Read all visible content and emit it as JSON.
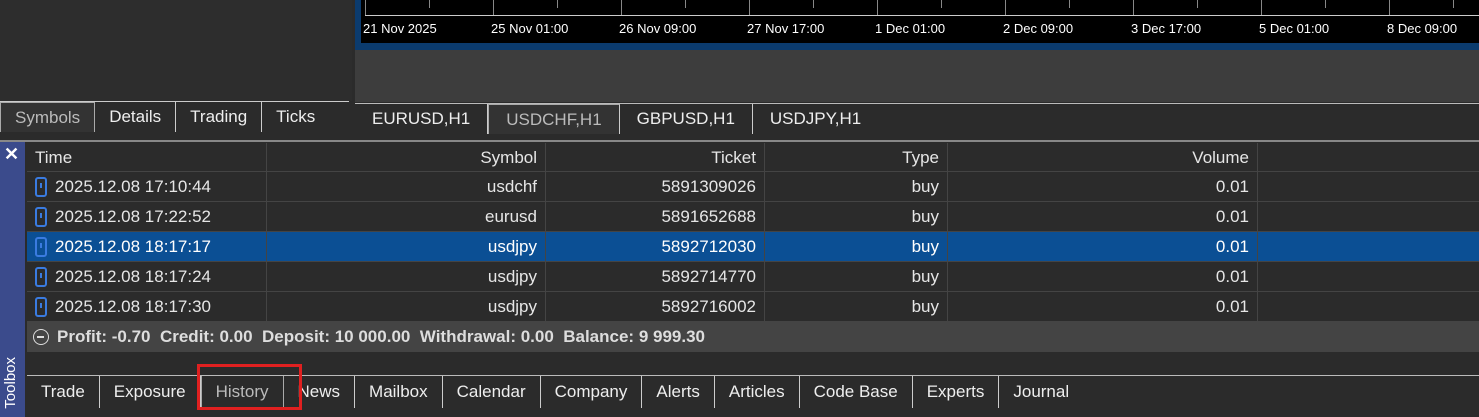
{
  "chart": {
    "time_labels": [
      "21 Nov 2025",
      "25 Nov 01:00",
      "26 Nov 09:00",
      "27 Nov 17:00",
      "1 Dec 01:00",
      "2 Dec 09:00",
      "3 Dec 17:00",
      "5 Dec 01:00",
      "8 Dec 09:00"
    ]
  },
  "left_tabs": [
    "Symbols",
    "Details",
    "Trading",
    "Ticks"
  ],
  "chart_tabs": [
    "EURUSD,H1",
    "USDCHF,H1",
    "GBPUSD,H1",
    "USDJPY,H1"
  ],
  "toolbox": {
    "close": "✕",
    "label": "Toolbox"
  },
  "table": {
    "headers": [
      "Time",
      "Symbol",
      "Ticket",
      "Type",
      "Volume"
    ],
    "rows": [
      [
        "2025.12.08 17:10:44",
        "usdchf",
        "5891309026",
        "buy",
        "0.01"
      ],
      [
        "2025.12.08 17:22:52",
        "eurusd",
        "5891652688",
        "buy",
        "0.01"
      ],
      [
        "2025.12.08 18:17:17",
        "usdjpy",
        "5892712030",
        "buy",
        "0.01"
      ],
      [
        "2025.12.08 18:17:24",
        "usdjpy",
        "5892714770",
        "buy",
        "0.01"
      ],
      [
        "2025.12.08 18:17:30",
        "usdjpy",
        "5892716002",
        "buy",
        "0.01"
      ]
    ],
    "selected_row": 2
  },
  "summary": "Profit: -0.70  Credit: 0.00  Deposit: 10 000.00  Withdrawal: 0.00  Balance: 9 999.30",
  "bottom_tabs": [
    "Trade",
    "Exposure",
    "History",
    "News",
    "Mailbox",
    "Calendar",
    "Company",
    "Alerts",
    "Articles",
    "Code Base",
    "Experts",
    "Journal"
  ],
  "selected_bottom_tab": "History",
  "highlight_color": "#e02020"
}
